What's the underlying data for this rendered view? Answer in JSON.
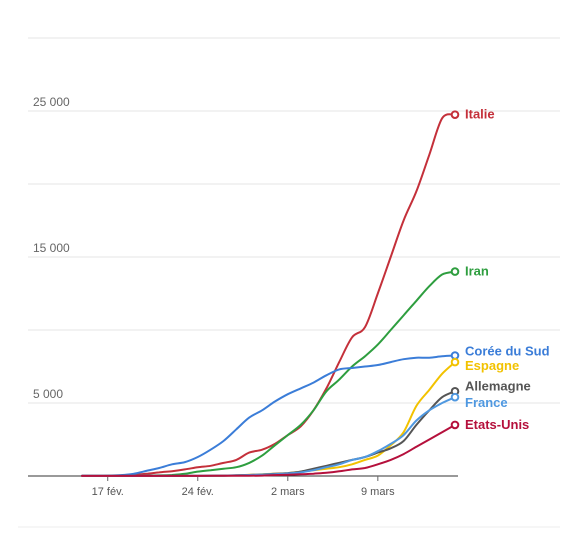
{
  "chart_data": {
    "type": "line",
    "title": "",
    "xlabel": "",
    "ylabel": "",
    "x": [
      "15 fév.",
      "16 fév.",
      "17 fév.",
      "18 fév.",
      "19 fév.",
      "20 fév.",
      "21 fév.",
      "22 fév.",
      "23 fév.",
      "24 fév.",
      "25 fév.",
      "26 fév.",
      "27 fév.",
      "28 fév.",
      "29 fév.",
      "1 mars",
      "2 mars",
      "3 mars",
      "4 mars",
      "5 mars",
      "6 mars",
      "7 mars",
      "8 mars",
      "9 mars",
      "10 mars",
      "11 mars",
      "12 mars",
      "13 mars",
      "14 mars",
      "15 mars"
    ],
    "x_ticks": [
      "17 fév.",
      "24 fév.",
      "2 mars",
      "9 mars"
    ],
    "y_ticks": [
      5000,
      15000,
      25000
    ],
    "y_tick_labels": [
      "5 000",
      "15 000",
      "25 000"
    ],
    "ylim": [
      0,
      30000
    ],
    "grid": true,
    "series": [
      {
        "name": "Italie",
        "color": "#c4303a",
        "values": [
          3,
          3,
          3,
          20,
          80,
          150,
          250,
          330,
          450,
          600,
          700,
          900,
          1100,
          1600,
          1800,
          2200,
          2800,
          3400,
          4500,
          6000,
          7800,
          9500,
          10200,
          12500,
          15000,
          17500,
          19500,
          22000,
          24500,
          24750
        ]
      },
      {
        "name": "Iran",
        "color": "#2e9e3f",
        "values": [
          0,
          0,
          0,
          0,
          5,
          20,
          40,
          70,
          150,
          300,
          400,
          500,
          600,
          900,
          1400,
          2100,
          2800,
          3500,
          4500,
          5800,
          6600,
          7500,
          8200,
          9000,
          10000,
          11000,
          12000,
          13000,
          13800,
          14000
        ]
      },
      {
        "name": "Corée du Sud",
        "color": "#3b7dd8",
        "values": [
          20,
          20,
          30,
          60,
          150,
          350,
          550,
          800,
          950,
          1300,
          1800,
          2400,
          3200,
          4000,
          4500,
          5100,
          5600,
          6000,
          6400,
          6900,
          7300,
          7400,
          7500,
          7600,
          7800,
          8000,
          8100,
          8100,
          8200,
          8250
        ]
      },
      {
        "name": "Espagne",
        "color": "#f2c200",
        "values": [
          0,
          0,
          0,
          0,
          0,
          0,
          0,
          0,
          0,
          0,
          5,
          20,
          40,
          80,
          120,
          160,
          200,
          300,
          400,
          500,
          600,
          800,
          1100,
          1400,
          2100,
          3000,
          4800,
          5900,
          7000,
          7800
        ]
      },
      {
        "name": "Allemagne",
        "color": "#555555",
        "values": [
          15,
          15,
          15,
          15,
          15,
          15,
          15,
          15,
          15,
          15,
          20,
          30,
          50,
          70,
          100,
          150,
          200,
          300,
          500,
          700,
          900,
          1100,
          1300,
          1600,
          1900,
          2400,
          3500,
          4500,
          5400,
          5800
        ]
      },
      {
        "name": "France",
        "color": "#4f98e0",
        "values": [
          10,
          10,
          10,
          10,
          10,
          10,
          10,
          10,
          10,
          10,
          15,
          20,
          40,
          70,
          100,
          120,
          180,
          250,
          400,
          600,
          800,
          1100,
          1300,
          1700,
          2200,
          2800,
          3800,
          4500,
          5000,
          5400
        ]
      },
      {
        "name": "Etats-Unis",
        "color": "#b5103c",
        "values": [
          10,
          10,
          10,
          10,
          10,
          10,
          10,
          10,
          10,
          10,
          12,
          15,
          15,
          20,
          30,
          60,
          90,
          120,
          160,
          220,
          320,
          450,
          550,
          800,
          1100,
          1500,
          2000,
          2500,
          3000,
          3500
        ]
      }
    ]
  }
}
